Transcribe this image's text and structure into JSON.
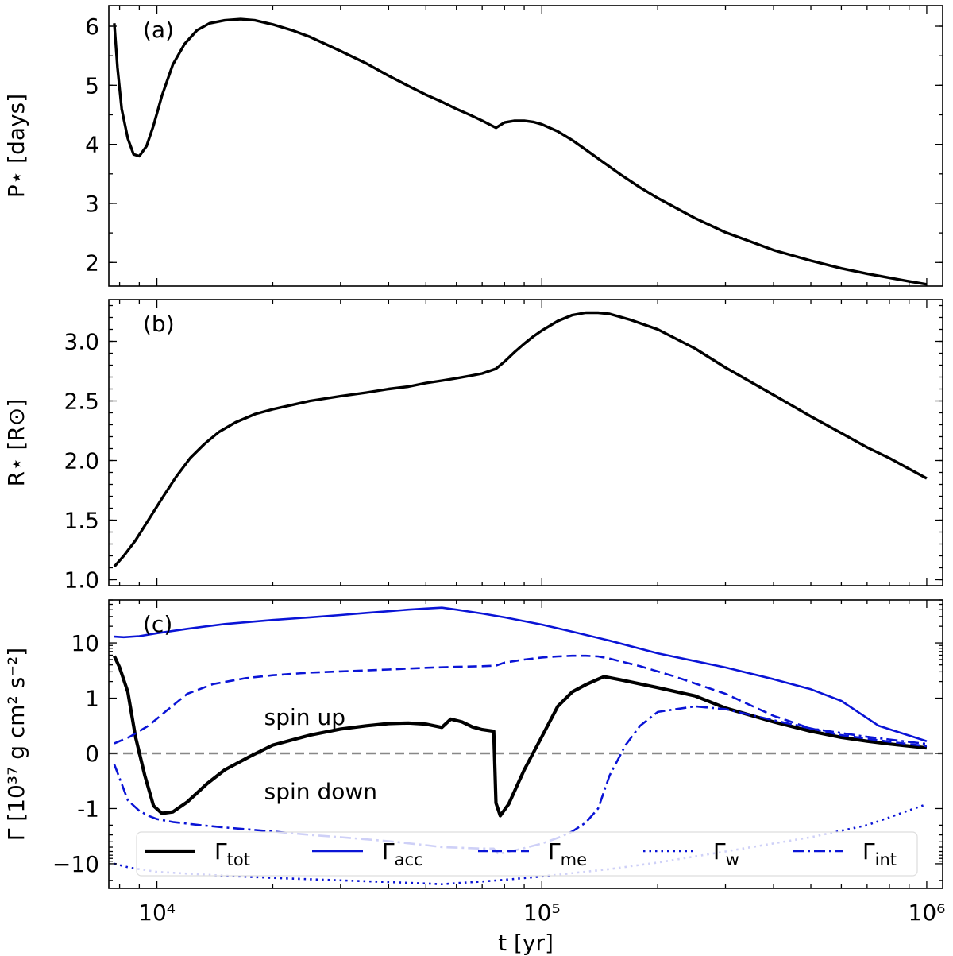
{
  "chart_data": [
    {
      "type": "line",
      "panel_label": "(a)",
      "xlabel": "",
      "ylabel": "P⋆ [days]",
      "xscale": "log",
      "xlim": [
        7500,
        1100000
      ],
      "ylim": [
        1.6,
        6.35
      ],
      "yticks": [
        2,
        3,
        4,
        5,
        6
      ],
      "ytick_labels": [
        "2",
        "3",
        "4",
        "5",
        "6"
      ],
      "series": [
        {
          "color": "#000000",
          "dash": "solid",
          "width": 3.4,
          "x": [
            7750,
            7900,
            8100,
            8400,
            8700,
            9000,
            9400,
            9800,
            10300,
            11000,
            11800,
            12700,
            13700,
            15000,
            16500,
            18000,
            20000,
            22500,
            25000,
            30000,
            35000,
            40000,
            45000,
            50000,
            55000,
            60000,
            65000,
            70000,
            76000,
            80000,
            85000,
            90000,
            95000,
            100000,
            110000,
            120000,
            130000,
            140000,
            160000,
            180000,
            200000,
            250000,
            300000,
            400000,
            500000,
            600000,
            700000,
            800000,
            900000,
            1000000
          ],
          "y": [
            6.05,
            5.3,
            4.6,
            4.1,
            3.83,
            3.8,
            3.97,
            4.32,
            4.82,
            5.35,
            5.7,
            5.93,
            6.05,
            6.1,
            6.12,
            6.1,
            6.03,
            5.93,
            5.82,
            5.58,
            5.37,
            5.16,
            4.99,
            4.84,
            4.72,
            4.6,
            4.5,
            4.4,
            4.28,
            4.37,
            4.4,
            4.4,
            4.38,
            4.34,
            4.22,
            4.07,
            3.91,
            3.76,
            3.49,
            3.27,
            3.09,
            2.75,
            2.51,
            2.21,
            2.03,
            1.9,
            1.81,
            1.74,
            1.68,
            1.63
          ]
        }
      ]
    },
    {
      "type": "line",
      "panel_label": "(b)",
      "xlabel": "",
      "ylabel": "R⋆ [R⊙]",
      "xscale": "log",
      "xlim": [
        7500,
        1100000
      ],
      "ylim": [
        0.95,
        3.35
      ],
      "yticks": [
        1.0,
        1.5,
        2.0,
        2.5,
        3.0
      ],
      "ytick_labels": [
        "1.0",
        "1.5",
        "2.0",
        "2.5",
        "3.0"
      ],
      "series": [
        {
          "color": "#000000",
          "dash": "solid",
          "width": 3.4,
          "x": [
            7750,
            8200,
            8800,
            9500,
            10300,
            11200,
            12200,
            13300,
            14500,
            16000,
            18000,
            20000,
            25000,
            30000,
            35000,
            40000,
            45000,
            50000,
            55000,
            60000,
            65000,
            70000,
            76000,
            80000,
            85000,
            90000,
            95000,
            100000,
            110000,
            120000,
            130000,
            140000,
            150000,
            170000,
            200000,
            250000,
            300000,
            400000,
            500000,
            600000,
            700000,
            800000,
            900000,
            1000000
          ],
          "y": [
            1.11,
            1.2,
            1.33,
            1.5,
            1.68,
            1.86,
            2.02,
            2.14,
            2.24,
            2.32,
            2.39,
            2.43,
            2.5,
            2.54,
            2.57,
            2.6,
            2.62,
            2.65,
            2.67,
            2.69,
            2.71,
            2.73,
            2.77,
            2.83,
            2.91,
            2.98,
            3.04,
            3.09,
            3.17,
            3.22,
            3.24,
            3.24,
            3.23,
            3.18,
            3.1,
            2.94,
            2.78,
            2.55,
            2.37,
            2.23,
            2.11,
            2.02,
            1.93,
            1.85
          ]
        }
      ]
    },
    {
      "type": "line",
      "panel_label": "(c)",
      "xlabel": "t [yr]",
      "ylabel": "Γ [10³⁷ g cm² s⁻²]",
      "xscale": "log",
      "xtick_labels": [
        "10⁴",
        "10⁵",
        "10⁶"
      ],
      "yscale": "symlog (linear within ±1)",
      "ylim": [
        -28,
        60
      ],
      "yticks": [
        -10,
        -1,
        0,
        1,
        10
      ],
      "ytick_labels": [
        "−10",
        "-1",
        "0",
        "1",
        "10"
      ],
      "hline": {
        "y": 0,
        "color": "#888888",
        "dash": "dashed"
      },
      "annotations": [
        {
          "text": "spin up",
          "x": 19000,
          "y": 0.65
        },
        {
          "text": "spin down",
          "x": 19000,
          "y": -0.7
        }
      ],
      "legend": {
        "placement": "lower center",
        "columns": 5
      },
      "series": [
        {
          "name": "Γtot",
          "label_main": "Γ",
          "label_sub": "tot",
          "color": "#000000",
          "dash": "solid",
          "width": 4.2,
          "x": [
            7750,
            8000,
            8400,
            8800,
            9300,
            9800,
            10300,
            11000,
            12000,
            13500,
            15000,
            17500,
            20000,
            25000,
            30000,
            35000,
            40000,
            45000,
            50000,
            55000,
            58000,
            62000,
            66000,
            70000,
            75000,
            76000,
            78000,
            82000,
            90000,
            100000,
            110000,
            120000,
            130000,
            140000,
            145000,
            160000,
            200000,
            250000,
            300000,
            400000,
            500000,
            600000,
            700000,
            800000,
            1000000
          ],
          "y": [
            5.8,
            3.6,
            1.3,
            0.3,
            -0.4,
            -0.95,
            -1.22,
            -1.15,
            -0.88,
            -0.55,
            -0.3,
            -0.05,
            0.15,
            0.33,
            0.44,
            0.5,
            0.54,
            0.55,
            0.53,
            0.47,
            0.62,
            0.57,
            0.48,
            0.43,
            0.4,
            -0.9,
            -1.35,
            -0.92,
            -0.3,
            0.3,
            0.85,
            1.3,
            1.75,
            2.2,
            2.45,
            2.15,
            1.55,
            1.1,
            0.82,
            0.57,
            0.4,
            0.29,
            0.22,
            0.17,
            0.1
          ]
        },
        {
          "name": "Γacc",
          "label_main": "Γ",
          "label_sub": "acc",
          "color": "#0a14d6",
          "dash": "solid",
          "width": 2.6,
          "x": [
            7750,
            8200,
            9000,
            10000,
            12000,
            15000,
            20000,
            25000,
            30000,
            35000,
            40000,
            45000,
            50000,
            55000,
            60000,
            70000,
            80000,
            100000,
            120000,
            150000,
            200000,
            300000,
            400000,
            500000,
            600000,
            750000,
            1000000
          ],
          "y": [
            13,
            12.7,
            13.3,
            15,
            18,
            22,
            26,
            29,
            32,
            35,
            37.5,
            40,
            42,
            43.5,
            40,
            34,
            29,
            21.5,
            16,
            11,
            6.5,
            3.6,
            2.2,
            1.45,
            0.95,
            0.5,
            0.22
          ]
        },
        {
          "name": "Γme",
          "label_main": "Γ",
          "label_sub": "me",
          "color": "#0a14d6",
          "dash": "dashed",
          "width": 2.6,
          "x": [
            7750,
            8500,
            9500,
            10500,
            12000,
            14000,
            17000,
            20000,
            25000,
            30000,
            40000,
            50000,
            60000,
            70000,
            76000,
            80000,
            90000,
            100000,
            110000,
            120000,
            130000,
            140000,
            150000,
            180000,
            220000,
            300000,
            400000,
            500000,
            600000,
            800000,
            1000000
          ],
          "y": [
            0.18,
            0.3,
            0.5,
            0.75,
            1.2,
            1.8,
            2.3,
            2.6,
            2.9,
            3.05,
            3.3,
            3.55,
            3.7,
            3.8,
            3.9,
            4.4,
            5.0,
            5.45,
            5.7,
            5.85,
            5.85,
            5.7,
            5.2,
            3.8,
            2.5,
            1.2,
            0.68,
            0.45,
            0.33,
            0.21,
            0.13
          ]
        },
        {
          "name": "Γw",
          "label_main": "Γ",
          "label_sub": "w",
          "color": "#0a14d6",
          "dash": "dotted",
          "width": 2.6,
          "x": [
            7750,
            8500,
            10000,
            15000,
            20000,
            30000,
            40000,
            50000,
            55000,
            60000,
            70000,
            80000,
            100000,
            150000,
            200000,
            300000,
            500000,
            700000,
            1000000
          ],
          "y": [
            -10,
            -11.8,
            -14,
            -16.5,
            -18,
            -20,
            -21.5,
            -22.8,
            -23.5,
            -22.5,
            -21,
            -19.5,
            -17,
            -12.5,
            -9.5,
            -6,
            -3.3,
            -2.0,
            -0.92
          ]
        },
        {
          "name": "Γint",
          "label_main": "Γ",
          "label_sub": "int",
          "color": "#0a14d6",
          "dash": "dashdot",
          "width": 2.6,
          "x": [
            7750,
            8000,
            8400,
            9000,
            9500,
            10000,
            11000,
            13000,
            15000,
            20000,
            25000,
            30000,
            40000,
            50000,
            55000,
            60000,
            70000,
            75000,
            77000,
            80000,
            90000,
            100000,
            110000,
            120000,
            130000,
            140000,
            150000,
            165000,
            180000,
            200000,
            250000,
            300000,
            400000,
            500000,
            700000,
            1000000
          ],
          "y": [
            -0.2,
            -0.45,
            -0.85,
            -1.1,
            -1.35,
            -1.55,
            -1.75,
            -2.0,
            -2.2,
            -2.6,
            -3.0,
            -3.3,
            -3.9,
            -4.6,
            -5.0,
            -5.1,
            -5.3,
            -5.3,
            -6.6,
            -6.3,
            -5.2,
            -4.3,
            -3.4,
            -2.6,
            -1.8,
            -1.0,
            -0.4,
            0.15,
            0.5,
            0.75,
            0.85,
            0.8,
            0.6,
            0.45,
            0.3,
            0.17
          ]
        }
      ]
    }
  ]
}
